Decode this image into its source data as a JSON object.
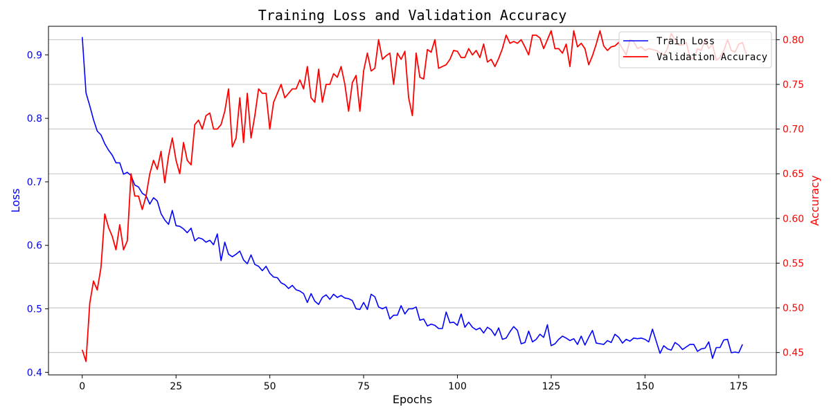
{
  "chart_data": {
    "type": "line",
    "title": "Training Loss and Validation Accuracy",
    "xlabel": "Epochs",
    "ylabel_left": "Loss",
    "ylabel_right": "Accuracy",
    "xlim": [
      -9,
      185
    ],
    "ylim_left": [
      0.396,
      0.945
    ],
    "ylim_right": [
      0.425,
      0.815
    ],
    "x_ticks": [
      0,
      25,
      50,
      75,
      100,
      125,
      150,
      175
    ],
    "y_ticks_left": [
      0.4,
      0.5,
      0.6,
      0.7,
      0.8,
      0.9
    ],
    "y_ticks_right": [
      0.45,
      0.5,
      0.55,
      0.6,
      0.65,
      0.7,
      0.75,
      0.8
    ],
    "y_tick_labels_left": [
      "0.4",
      "0.5",
      "0.6",
      "0.7",
      "0.8",
      "0.9"
    ],
    "y_tick_labels_right": [
      "0.45",
      "0.50",
      "0.55",
      "0.60",
      "0.65",
      "0.70",
      "0.75",
      "0.80"
    ],
    "grid": "horizontal (right axis)",
    "legend_position": "top-right",
    "colors": {
      "loss": "#0000ff",
      "accuracy": "#ff0000",
      "grid": "#b0b0b0"
    },
    "series": [
      {
        "name": "Train Loss",
        "axis": "left",
        "x_start": 0,
        "values": [
          0.928,
          0.84,
          0.82,
          0.798,
          0.78,
          0.774,
          0.76,
          0.75,
          0.742,
          0.73,
          0.73,
          0.712,
          0.715,
          0.71,
          0.695,
          0.692,
          0.682,
          0.678,
          0.665,
          0.675,
          0.67,
          0.65,
          0.64,
          0.633,
          0.655,
          0.631,
          0.63,
          0.626,
          0.62,
          0.627,
          0.607,
          0.612,
          0.61,
          0.605,
          0.608,
          0.601,
          0.618,
          0.576,
          0.605,
          0.586,
          0.582,
          0.586,
          0.591,
          0.577,
          0.571,
          0.585,
          0.57,
          0.567,
          0.56,
          0.567,
          0.556,
          0.55,
          0.549,
          0.541,
          0.538,
          0.532,
          0.537,
          0.53,
          0.528,
          0.524,
          0.51,
          0.524,
          0.512,
          0.507,
          0.518,
          0.522,
          0.515,
          0.523,
          0.518,
          0.521,
          0.517,
          0.516,
          0.513,
          0.5,
          0.499,
          0.51,
          0.499,
          0.523,
          0.519,
          0.503,
          0.5,
          0.503,
          0.484,
          0.49,
          0.49,
          0.505,
          0.492,
          0.5,
          0.5,
          0.503,
          0.482,
          0.484,
          0.473,
          0.476,
          0.474,
          0.469,
          0.469,
          0.495,
          0.478,
          0.479,
          0.474,
          0.492,
          0.471,
          0.479,
          0.471,
          0.467,
          0.47,
          0.462,
          0.471,
          0.467,
          0.458,
          0.47,
          0.452,
          0.454,
          0.464,
          0.472,
          0.466,
          0.445,
          0.447,
          0.465,
          0.448,
          0.452,
          0.46,
          0.455,
          0.475,
          0.442,
          0.445,
          0.452,
          0.457,
          0.454,
          0.45,
          0.453,
          0.444,
          0.457,
          0.443,
          0.455,
          0.466,
          0.446,
          0.445,
          0.444,
          0.45,
          0.447,
          0.46,
          0.455,
          0.446,
          0.452,
          0.449,
          0.454,
          0.453,
          0.454,
          0.452,
          0.448,
          0.468,
          0.449,
          0.43,
          0.442,
          0.437,
          0.435,
          0.447,
          0.443,
          0.436,
          0.44,
          0.444,
          0.444,
          0.433,
          0.437,
          0.438,
          0.448,
          0.422,
          0.439,
          0.439,
          0.451,
          0.452,
          0.431,
          0.432,
          0.431,
          0.444
        ]
      },
      {
        "name": "Validation Accuracy",
        "axis": "right",
        "x_start": 0,
        "values": [
          0.453,
          0.44,
          0.505,
          0.53,
          0.52,
          0.545,
          0.605,
          0.59,
          0.58,
          0.565,
          0.593,
          0.565,
          0.575,
          0.65,
          0.625,
          0.625,
          0.61,
          0.625,
          0.65,
          0.665,
          0.655,
          0.675,
          0.64,
          0.67,
          0.69,
          0.665,
          0.65,
          0.685,
          0.665,
          0.66,
          0.705,
          0.71,
          0.7,
          0.715,
          0.718,
          0.7,
          0.7,
          0.705,
          0.72,
          0.745,
          0.68,
          0.69,
          0.735,
          0.685,
          0.74,
          0.69,
          0.715,
          0.745,
          0.74,
          0.74,
          0.7,
          0.73,
          0.74,
          0.75,
          0.735,
          0.74,
          0.745,
          0.745,
          0.755,
          0.745,
          0.77,
          0.735,
          0.73,
          0.767,
          0.73,
          0.75,
          0.75,
          0.762,
          0.758,
          0.77,
          0.75,
          0.72,
          0.752,
          0.76,
          0.72,
          0.765,
          0.785,
          0.765,
          0.768,
          0.8,
          0.778,
          0.782,
          0.785,
          0.75,
          0.785,
          0.778,
          0.787,
          0.735,
          0.715,
          0.785,
          0.758,
          0.756,
          0.789,
          0.786,
          0.8,
          0.768,
          0.77,
          0.772,
          0.778,
          0.788,
          0.787,
          0.78,
          0.78,
          0.79,
          0.783,
          0.788,
          0.78,
          0.795,
          0.775,
          0.778,
          0.77,
          0.779,
          0.79,
          0.805,
          0.796,
          0.798,
          0.796,
          0.8,
          0.792,
          0.783,
          0.805,
          0.805,
          0.802,
          0.79,
          0.8,
          0.81,
          0.79,
          0.79,
          0.785,
          0.795,
          0.77,
          0.81,
          0.792,
          0.796,
          0.79,
          0.772,
          0.782,
          0.795,
          0.81,
          0.793,
          0.788,
          0.792,
          0.793,
          0.797,
          0.79,
          0.783,
          0.8,
          0.798,
          0.79,
          0.792,
          0.788,
          0.79,
          0.789,
          0.788,
          0.785,
          0.783,
          0.79,
          0.807,
          0.8,
          0.794,
          0.794,
          0.797,
          0.78,
          0.778,
          0.79,
          0.788,
          0.8,
          0.79,
          0.795,
          0.777,
          0.78,
          0.788,
          0.8,
          0.788,
          0.786,
          0.795,
          0.797,
          0.784
        ]
      }
    ]
  }
}
